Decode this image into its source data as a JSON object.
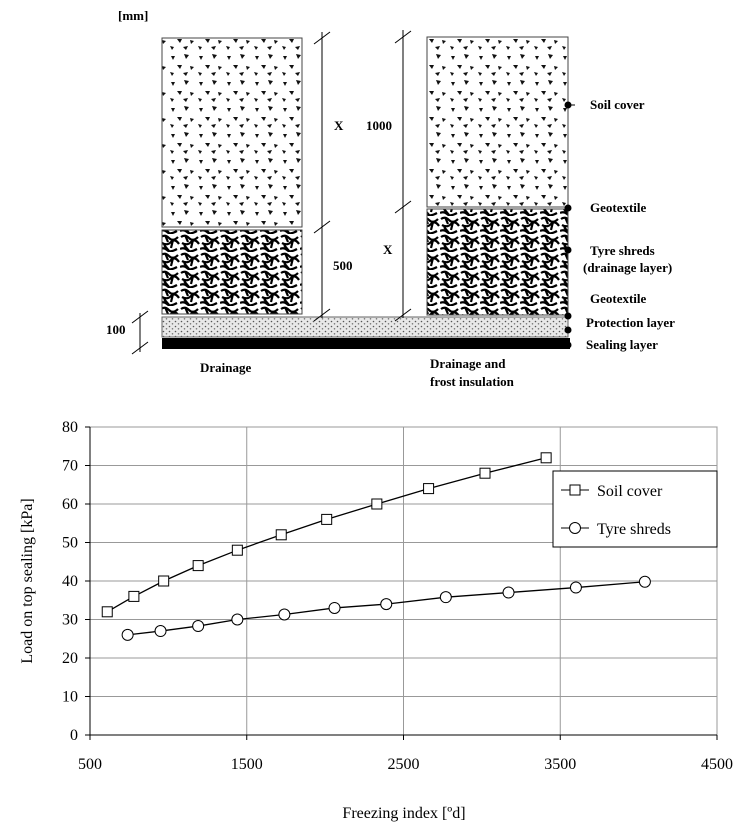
{
  "diagram": {
    "unit": "[mm]",
    "dimensions": {
      "left_top": "X",
      "left_bottom": "500",
      "right_top": "1000",
      "right_bottom": "X",
      "base": "100"
    },
    "captions": {
      "left": "Drainage",
      "right": [
        "Drainage and",
        "frost insulation"
      ]
    },
    "layers": [
      "Soil cover",
      "Geotextile",
      "Tyre shreds",
      "(drainage layer)",
      "Geotextile",
      "Protection layer",
      "Sealing layer"
    ]
  },
  "chart_data": {
    "type": "line",
    "xlabel": "Freezing index [ºd]",
    "ylabel": "Load on top sealing [kPa]",
    "xlim": [
      500,
      4500
    ],
    "xticks": [
      500,
      1500,
      2500,
      3500,
      4500
    ],
    "ylim": [
      0,
      80
    ],
    "yticks": [
      0,
      10,
      20,
      30,
      40,
      50,
      60,
      70,
      80
    ],
    "grid": true,
    "legend": "upper right",
    "series": [
      {
        "name": "Soil cover",
        "color": "#000000",
        "marker": "square",
        "x": [
          610,
          780,
          970,
          1190,
          1440,
          1720,
          2010,
          2330,
          2660,
          3020,
          3410
        ],
        "values": [
          32,
          36,
          40,
          44,
          48,
          52,
          56,
          60,
          64,
          68,
          72
        ]
      },
      {
        "name": "Tyre shreds",
        "color": "#000000",
        "marker": "circle",
        "x": [
          740,
          950,
          1190,
          1440,
          1740,
          2060,
          2390,
          2770,
          3170,
          3600,
          4040
        ],
        "values": [
          26,
          27,
          28.3,
          30,
          31.3,
          33,
          34,
          35.8,
          37,
          38.3,
          39.8
        ]
      }
    ]
  }
}
